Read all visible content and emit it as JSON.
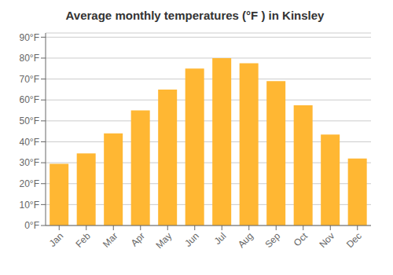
{
  "chart_data": {
    "type": "bar",
    "title": "Average monthly temperatures (°F ) in Kinsley",
    "categories": [
      "Jan",
      "Feb",
      "Mar",
      "Apr",
      "May",
      "Jun",
      "Jul",
      "Aug",
      "Sep",
      "Oct",
      "Nov",
      "Dec"
    ],
    "values": [
      29.5,
      34.5,
      44,
      55,
      65,
      75,
      80,
      77.5,
      69,
      57.5,
      43.5,
      32
    ],
    "color": "#FFB733",
    "ylim": [
      0,
      92
    ],
    "yticks": [
      {
        "value": 0,
        "label": "0°F"
      },
      {
        "value": 10,
        "label": "10°F"
      },
      {
        "value": 20,
        "label": "20°F"
      },
      {
        "value": 30,
        "label": "30°F"
      },
      {
        "value": 40,
        "label": "40°F"
      },
      {
        "value": 50,
        "label": "50°F"
      },
      {
        "value": 60,
        "label": "60°F"
      },
      {
        "value": 70,
        "label": "70°F"
      },
      {
        "value": 80,
        "label": "80°F"
      },
      {
        "value": 90,
        "label": "90°F"
      }
    ],
    "grid": true
  }
}
